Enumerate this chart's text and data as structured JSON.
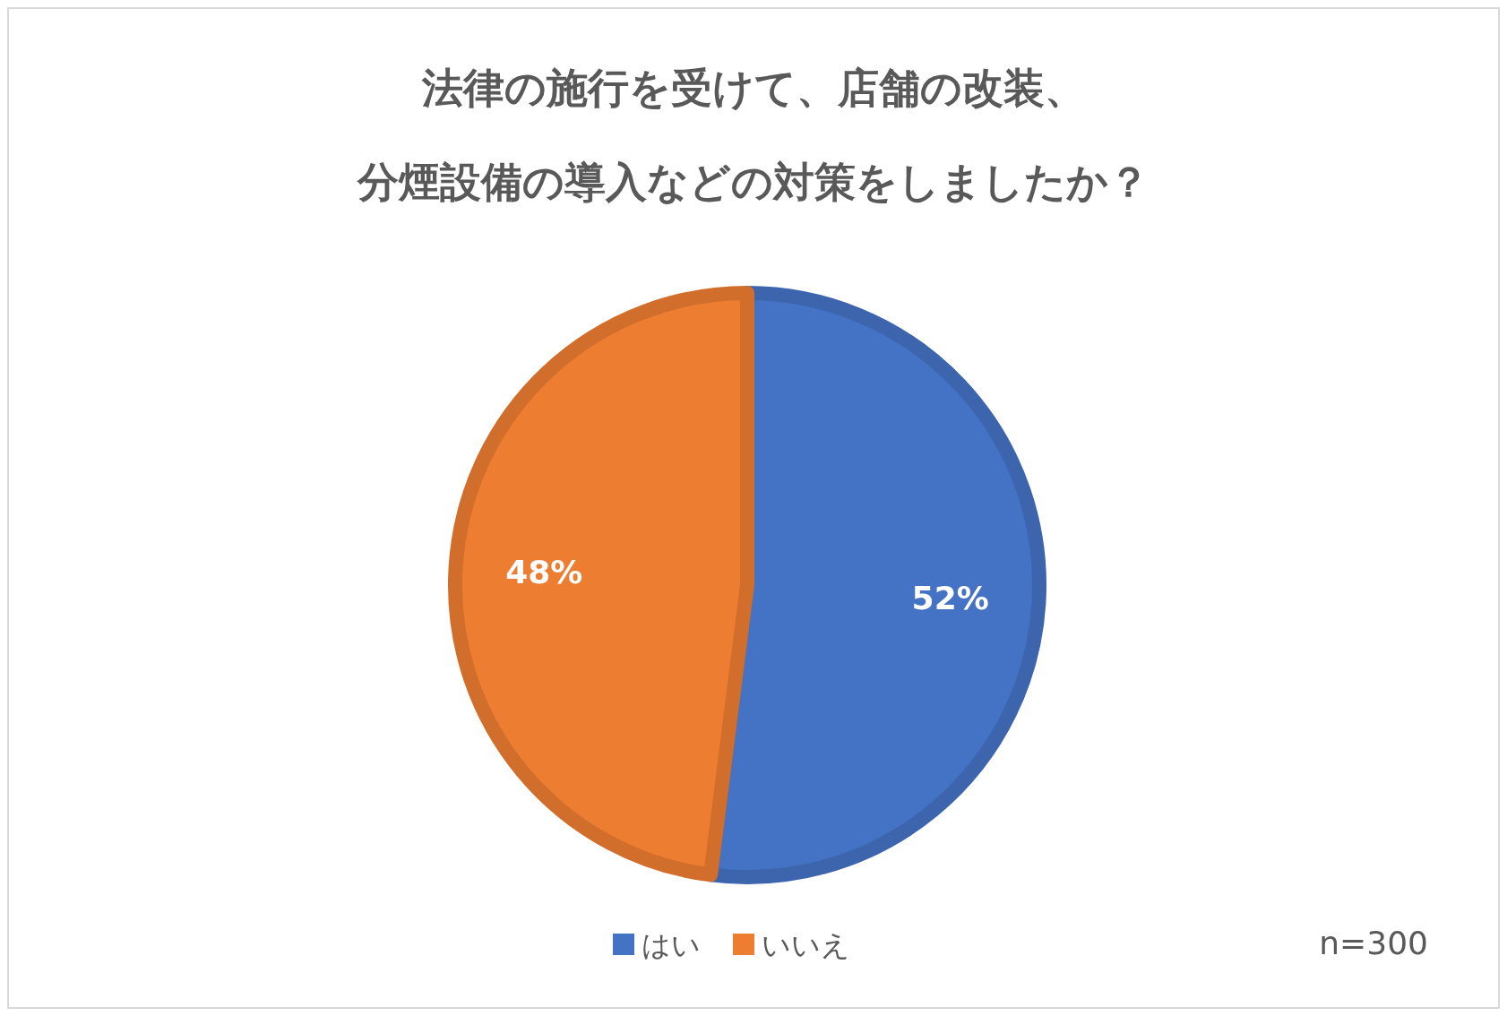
{
  "chart_data": {
    "type": "pie",
    "title": "法律の施行を受けて、店舗の改装、分煙設備の導入などの対策をしましたか？",
    "categories": [
      "はい",
      "いいえ"
    ],
    "values": [
      52,
      48
    ],
    "colors": [
      "#4472c4",
      "#ed7d31"
    ],
    "value_labels": [
      "52%",
      "48%"
    ],
    "legend": "bottom",
    "annotations": [
      "n=300"
    ]
  }
}
